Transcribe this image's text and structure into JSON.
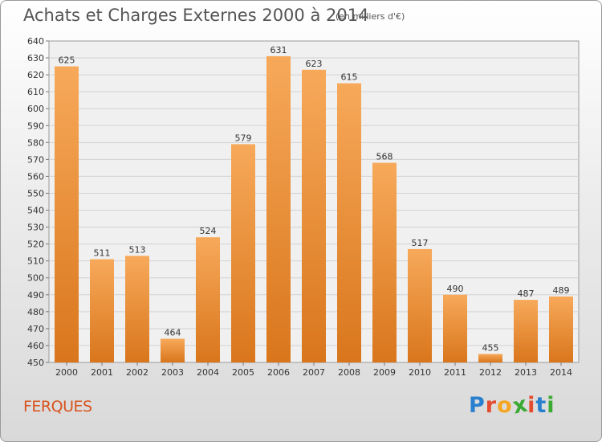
{
  "chart_data": {
    "type": "bar",
    "title": "Achats et Charges Externes 2000 à 2014",
    "subtitle": "(en milliers d'€)",
    "categories": [
      "2000",
      "2001",
      "2002",
      "2003",
      "2004",
      "2005",
      "2006",
      "2007",
      "2008",
      "2009",
      "2010",
      "2011",
      "2012",
      "2013",
      "2014"
    ],
    "values": [
      625,
      511,
      513,
      464,
      524,
      579,
      631,
      623,
      615,
      568,
      517,
      490,
      455,
      487,
      489
    ],
    "ylim": [
      450,
      640
    ],
    "yticks": [
      450,
      460,
      470,
      480,
      490,
      500,
      510,
      520,
      530,
      540,
      550,
      560,
      570,
      580,
      590,
      600,
      610,
      620,
      630,
      640
    ],
    "grid": true,
    "legend": "none",
    "bar_color": "#f0923a"
  },
  "commune": "FERQUES",
  "logo": {
    "letters": [
      "P",
      "r",
      "o",
      "x",
      "i",
      "t",
      "i"
    ],
    "colors": [
      "#2a7fcf",
      "#e34c2f",
      "#f5a623",
      "#3aaa35",
      "#e34c2f",
      "#2a7fcf",
      "#3aaa35"
    ]
  }
}
